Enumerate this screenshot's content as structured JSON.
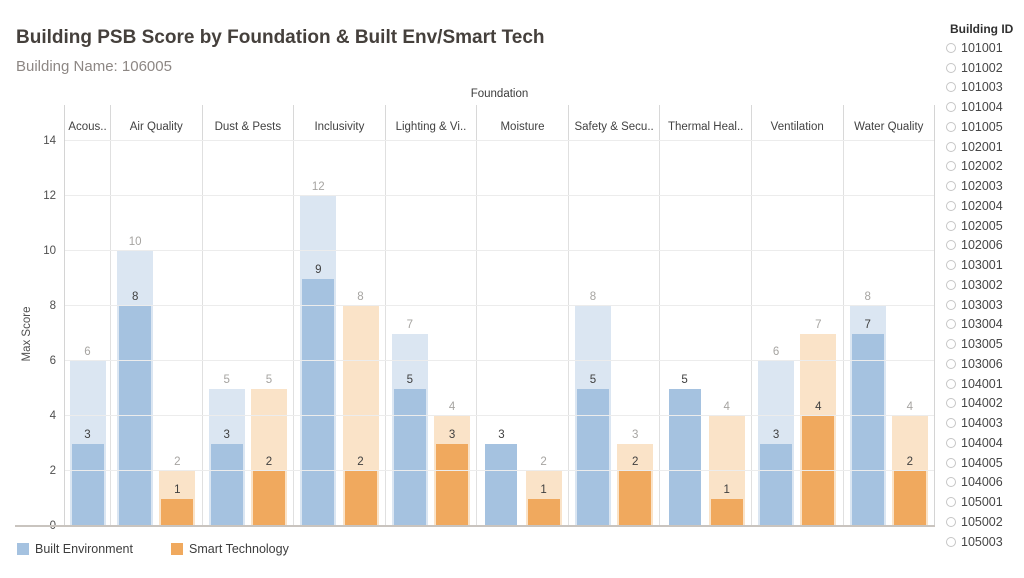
{
  "chart_data": {
    "type": "bar",
    "title": "Building PSB Score by Foundation & Built Env/Smart Tech",
    "subtitle": "Building Name: 106005",
    "top_axis_label": "Foundation",
    "ylabel": "Max Score",
    "ylim": [
      0,
      14
    ],
    "yticks": [
      0,
      2,
      4,
      6,
      8,
      10,
      12,
      14
    ],
    "grid": "horizontal",
    "legend_position": "bottom-left",
    "series": [
      {
        "name": "Built Environment",
        "color": "#a5c2e0",
        "max_color": "#dbe6f2"
      },
      {
        "name": "Smart Technology",
        "color": "#f0a95e",
        "max_color": "#fae3c8"
      }
    ],
    "categories": [
      {
        "label": "Acous..",
        "bars": [
          {
            "series": 0,
            "max": 6,
            "value": 3
          }
        ]
      },
      {
        "label": "Air Quality",
        "bars": [
          {
            "series": 0,
            "max": 10,
            "value": 8
          },
          {
            "series": 1,
            "max": 2,
            "value": 1
          }
        ]
      },
      {
        "label": "Dust & Pests",
        "bars": [
          {
            "series": 0,
            "max": 5,
            "value": 3
          },
          {
            "series": 1,
            "max": 5,
            "value": 2
          }
        ]
      },
      {
        "label": "Inclusivity",
        "bars": [
          {
            "series": 0,
            "max": 12,
            "value": 9
          },
          {
            "series": 1,
            "max": 8,
            "value": 2
          }
        ]
      },
      {
        "label": "Lighting & Vi..",
        "bars": [
          {
            "series": 0,
            "max": 7,
            "value": 5
          },
          {
            "series": 1,
            "max": 4,
            "value": 3
          }
        ]
      },
      {
        "label": "Moisture",
        "bars": [
          {
            "series": 0,
            "max": null,
            "value": 3
          },
          {
            "series": 1,
            "max": 2,
            "value": 1
          }
        ]
      },
      {
        "label": "Safety & Secu..",
        "bars": [
          {
            "series": 0,
            "max": 8,
            "value": 5
          },
          {
            "series": 1,
            "max": 3,
            "value": 2
          }
        ]
      },
      {
        "label": "Thermal Heal..",
        "bars": [
          {
            "series": 0,
            "max": null,
            "value": 5
          },
          {
            "series": 1,
            "max": 4,
            "value": 1
          }
        ]
      },
      {
        "label": "Ventilation",
        "bars": [
          {
            "series": 0,
            "max": 6,
            "value": 3
          },
          {
            "series": 1,
            "max": 7,
            "value": 4
          }
        ]
      },
      {
        "label": "Water Quality",
        "bars": [
          {
            "series": 0,
            "max": 8,
            "value": 7
          },
          {
            "series": 1,
            "max": 4,
            "value": 2
          }
        ]
      }
    ]
  },
  "sidebar": {
    "title": "Building ID",
    "options": [
      "101001",
      "101002",
      "101003",
      "101004",
      "101005",
      "102001",
      "102002",
      "102003",
      "102004",
      "102005",
      "102006",
      "103001",
      "103002",
      "103003",
      "103004",
      "103005",
      "103006",
      "104001",
      "104002",
      "104003",
      "104004",
      "104005",
      "104006",
      "105001",
      "105002",
      "105003"
    ]
  }
}
